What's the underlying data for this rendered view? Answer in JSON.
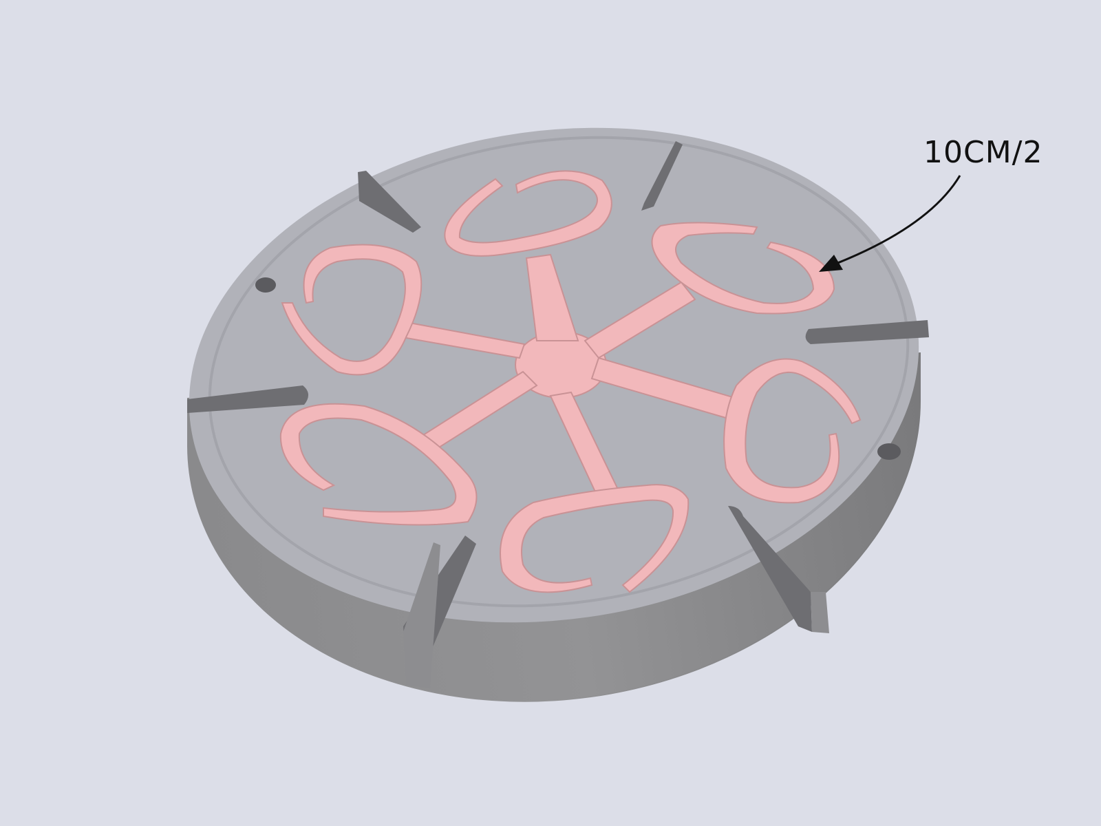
{
  "annotation": {
    "label": "10CM/2"
  },
  "colors": {
    "background": "#dcdee8",
    "plate_top": "#b1b2b9",
    "plate_side": "#8c8c8e",
    "plate_side_dark": "#7b7b7d",
    "slot_shadow": "#6e6e72",
    "pink_fill": "#f2b8bb",
    "pink_edge": "#c99295",
    "ink": "#111111"
  },
  "icons": {
    "arrow": "curved-arrow-icon"
  },
  "part": {
    "slot_count": 6,
    "hook_count": 6,
    "hole_count": 2
  }
}
